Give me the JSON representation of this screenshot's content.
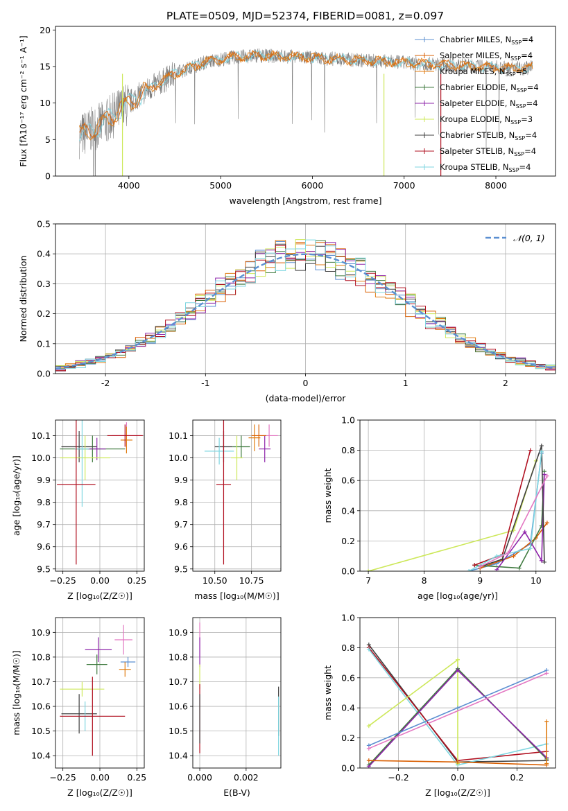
{
  "title": "PLATE=0509, MJD=52374, FIBERID=0081, z=0.097",
  "colors": [
    "#5b8fd1",
    "#d95f02",
    "#e07b10",
    "#3f7a3f",
    "#8e24aa",
    "#cde85a",
    "#404040",
    "#b01020",
    "#7fd6e0",
    "#e377c2"
  ],
  "chart_data": [
    {
      "id": "spectrum",
      "type": "line",
      "xlabel": "wavelength [Angstrom, rest frame]",
      "ylabel": "Flux [fλ10⁻¹⁷ erg cm⁻² s⁻¹ A⁻¹]",
      "xlim": [
        3200,
        8650
      ],
      "ylim": [
        0,
        20.5
      ],
      "xticks": [
        4000,
        5000,
        6000,
        7000,
        8000
      ],
      "yticks": [
        0,
        5,
        10,
        15,
        20
      ],
      "grid": false,
      "legend_position": "top-right",
      "continuum": {
        "x": [
          3460,
          3700,
          3900,
          4100,
          4300,
          4500,
          4800,
          5100,
          5400,
          5700,
          6000,
          6300,
          6600,
          6900,
          7200,
          7500,
          7800,
          8100,
          8400
        ],
        "y": [
          5.5,
          7.0,
          9.0,
          11.0,
          12.5,
          14.0,
          15.5,
          16.2,
          16.5,
          16.4,
          16.2,
          16.0,
          15.8,
          15.6,
          15.4,
          15.2,
          15.0,
          14.8,
          14.8
        ]
      },
      "series": [
        {
          "name": "Chabrier MILES, N",
          "sub": "SSP",
          "suffix": "=4"
        },
        {
          "name": "Salpeter MILES, N",
          "sub": "SSP",
          "suffix": "=4"
        },
        {
          "name": "Kroupa MILES, N",
          "sub": "SSP",
          "suffix": "=5"
        },
        {
          "name": "Chabrier ELODIE, N",
          "sub": "SSP",
          "suffix": "=4"
        },
        {
          "name": "Salpeter ELODIE, N",
          "sub": "SSP",
          "suffix": "=4"
        },
        {
          "name": "Kroupa ELODIE, N",
          "sub": "SSP",
          "suffix": "=3"
        },
        {
          "name": "Chabrier STELIB, N",
          "sub": "SSP",
          "suffix": "=4"
        },
        {
          "name": "Salpeter STELIB, N",
          "sub": "SSP",
          "suffix": "=4"
        },
        {
          "name": "Kroupa STELIB, N",
          "sub": "SSP",
          "suffix": "=4"
        }
      ]
    },
    {
      "id": "residuals",
      "type": "histogram",
      "xlabel": "(data-model)/error",
      "ylabel": "Normed distribution",
      "xlim": [
        -2.5,
        2.5
      ],
      "ylim": [
        0,
        0.5
      ],
      "xticks": [
        -2,
        -1,
        0,
        1,
        2
      ],
      "yticks": [
        0.0,
        0.1,
        0.2,
        0.3,
        0.4,
        0.5
      ],
      "grid": true,
      "legend": "𝒩(0, 1)",
      "legend_position": "top-right",
      "bin_width": 0.1
    },
    {
      "id": "age-vs-z",
      "type": "scatter",
      "xlabel": "Z [log₁₀(Z/Z☉)]",
      "ylabel": "age  [log₁₀(age/yr)]",
      "xlim": [
        -0.3,
        0.3
      ],
      "ylim": [
        9.49,
        10.17
      ],
      "xticks": [
        -0.25,
        0.0,
        0.25
      ],
      "xtick_labels": [
        "−0.25",
        "0.00",
        "0.25"
      ],
      "yticks": [
        9.5,
        9.6,
        9.7,
        9.8,
        9.9,
        10.0,
        10.1
      ],
      "grid": true,
      "points": [
        {
          "x": -0.05,
          "y": 10.04,
          "xerr": 0.22,
          "yerr": 0.06,
          "c": 3
        },
        {
          "x": -0.14,
          "y": 10.05,
          "xerr": 0.12,
          "yerr": 0.07,
          "c": 6
        },
        {
          "x": -0.02,
          "y": 10.04,
          "xerr": 0.06,
          "yerr": 0.05,
          "c": 4
        },
        {
          "x": -0.1,
          "y": 10.0,
          "xerr": 0.17,
          "yerr": 0.1,
          "c": 5
        },
        {
          "x": -0.12,
          "y": 10.04,
          "xerr": 0.05,
          "yerr": 0.26,
          "c": 8
        },
        {
          "x": -0.16,
          "y": 9.88,
          "xerr": 0.13,
          "yerr": 0.36,
          "c": 7
        },
        {
          "x": 0.18,
          "y": 10.1,
          "xerr": 0.1,
          "yerr": 0.06,
          "c": 9
        },
        {
          "x": 0.18,
          "y": 10.08,
          "xerr": 0.04,
          "yerr": 0.06,
          "c": 2
        },
        {
          "x": 0.17,
          "y": 10.1,
          "xerr": 0.12,
          "yerr": 0.05,
          "c": 7
        }
      ]
    },
    {
      "id": "age-vs-mass",
      "type": "scatter",
      "xlabel": "mass [log₁₀(M/M☉)]",
      "ylabel": "",
      "xlim": [
        10.35,
        10.95
      ],
      "ylim": [
        9.49,
        10.17
      ],
      "xticks": [
        10.5,
        10.75
      ],
      "xtick_labels": [
        "10.50",
        "10.75"
      ],
      "yticks": [
        9.5,
        9.6,
        9.7,
        9.8,
        9.9,
        10.0,
        10.1
      ],
      "grid": true,
      "points": [
        {
          "x": 10.56,
          "y": 10.05,
          "xerr": 0.06,
          "yerr": 0.07,
          "c": 6
        },
        {
          "x": 10.53,
          "y": 10.03,
          "xerr": 0.1,
          "yerr": 0.06,
          "c": 8
        },
        {
          "x": 10.68,
          "y": 10.05,
          "xerr": 0.06,
          "yerr": 0.05,
          "c": 3
        },
        {
          "x": 10.65,
          "y": 10.0,
          "xerr": 0.04,
          "yerr": 0.1,
          "c": 5
        },
        {
          "x": 10.84,
          "y": 10.04,
          "xerr": 0.04,
          "yerr": 0.06,
          "c": 4
        },
        {
          "x": 10.56,
          "y": 9.88,
          "xerr": 0.05,
          "yerr": 0.36,
          "c": 7
        },
        {
          "x": 10.87,
          "y": 10.1,
          "xerr": 0.06,
          "yerr": 0.05,
          "c": 9
        },
        {
          "x": 10.77,
          "y": 10.09,
          "xerr": 0.04,
          "yerr": 0.06,
          "c": 2
        },
        {
          "x": 10.8,
          "y": 10.1,
          "xerr": 0.05,
          "yerr": 0.05,
          "c": 1
        }
      ]
    },
    {
      "id": "weight-vs-age",
      "type": "line",
      "xlabel": "age  [log₁₀(age/yr)]",
      "ylabel": "mass weight",
      "xlim": [
        6.85,
        10.35
      ],
      "ylim": [
        0,
        1.0
      ],
      "xticks": [
        7,
        8,
        9,
        10
      ],
      "yticks": [
        0.0,
        0.2,
        0.4,
        0.6,
        0.8,
        1.0
      ],
      "grid": true,
      "series": [
        {
          "c": 0,
          "x": [
            8.8,
            9.3,
            9.9,
            10.1
          ],
          "y": [
            0.0,
            0.05,
            0.18,
            0.78
          ]
        },
        {
          "c": 1,
          "x": [
            9.0,
            9.6,
            10.0,
            10.2
          ],
          "y": [
            0.02,
            0.1,
            0.22,
            0.32
          ]
        },
        {
          "c": 3,
          "x": [
            8.9,
            9.7,
            10.1,
            10.15
          ],
          "y": [
            0.04,
            0.02,
            0.3,
            0.66
          ]
        },
        {
          "c": 4,
          "x": [
            9.3,
            9.8,
            10.1,
            10.15
          ],
          "y": [
            0.01,
            0.26,
            0.07,
            0.64
          ]
        },
        {
          "c": 5,
          "x": [
            7.0,
            9.6,
            10.0
          ],
          "y": [
            0.0,
            0.27,
            0.73
          ]
        },
        {
          "c": 6,
          "x": [
            9.0,
            9.4,
            10.1,
            10.15
          ],
          "y": [
            0.03,
            0.08,
            0.83,
            0.06
          ]
        },
        {
          "c": 7,
          "x": [
            8.9,
            9.4,
            9.9
          ],
          "y": [
            0.04,
            0.11,
            0.8
          ]
        },
        {
          "c": 8,
          "x": [
            8.8,
            9.3,
            9.9,
            10.1
          ],
          "y": [
            0.0,
            0.1,
            0.15,
            0.79
          ]
        },
        {
          "c": 9,
          "x": [
            9.0,
            9.5,
            10.2
          ],
          "y": [
            0.03,
            0.12,
            0.63
          ]
        }
      ]
    },
    {
      "id": "mass-vs-z",
      "type": "scatter",
      "xlabel": "Z [log₁₀(Z/Z☉)]",
      "ylabel": "mass [log₁₀(M/M☉)]",
      "xlim": [
        -0.3,
        0.3
      ],
      "ylim": [
        10.35,
        10.96
      ],
      "xticks": [
        -0.25,
        0.0,
        0.25
      ],
      "xtick_labels": [
        "−0.25",
        "0.00",
        "0.25"
      ],
      "yticks": [
        10.4,
        10.5,
        10.6,
        10.7,
        10.8,
        10.9
      ],
      "grid": true,
      "points": [
        {
          "x": -0.01,
          "y": 10.83,
          "xerr": 0.09,
          "yerr": 0.05,
          "c": 4
        },
        {
          "x": 0.16,
          "y": 10.87,
          "xerr": 0.06,
          "yerr": 0.06,
          "c": 9
        },
        {
          "x": 0.19,
          "y": 10.78,
          "xerr": 0.05,
          "yerr": 0.02,
          "c": 0
        },
        {
          "x": -0.02,
          "y": 10.77,
          "xerr": 0.07,
          "yerr": 0.04,
          "c": 3
        },
        {
          "x": 0.17,
          "y": 10.75,
          "xerr": 0.04,
          "yerr": 0.03,
          "c": 2
        },
        {
          "x": -0.12,
          "y": 10.67,
          "xerr": 0.15,
          "yerr": 0.03,
          "c": 5
        },
        {
          "x": -0.14,
          "y": 10.57,
          "xerr": 0.12,
          "yerr": 0.08,
          "c": 6
        },
        {
          "x": -0.1,
          "y": 10.56,
          "xerr": 0.05,
          "yerr": 0.06,
          "c": 8
        },
        {
          "x": -0.05,
          "y": 10.56,
          "xerr": 0.22,
          "yerr": 0.16,
          "c": 7
        }
      ]
    },
    {
      "id": "mass-vs-ebv",
      "type": "scatter",
      "xlabel": "E(B-V)",
      "ylabel": "",
      "xlim": [
        -0.0003,
        0.0035
      ],
      "ylim": [
        10.35,
        10.96
      ],
      "xticks": [
        0.0,
        0.002
      ],
      "xtick_labels": [
        "0.000",
        "0.002"
      ],
      "yticks": [
        10.4,
        10.5,
        10.6,
        10.7,
        10.8,
        10.9
      ],
      "grid": true,
      "points": [
        {
          "x": 0.0,
          "y": 10.87,
          "xerr": 0,
          "yerr": 0.07,
          "c": 9
        },
        {
          "x": 0.0,
          "y": 10.82,
          "xerr": 0,
          "yerr": 0.06,
          "c": 4
        },
        {
          "x": 0.0,
          "y": 10.72,
          "xerr": 0,
          "yerr": 0.05,
          "c": 5
        },
        {
          "x": 0.0,
          "y": 10.55,
          "xerr": 0,
          "yerr": 0.14,
          "c": 7
        },
        {
          "x": 0.0,
          "y": 10.55,
          "xerr": 0,
          "yerr": 0.1,
          "c": 6
        },
        {
          "x": 0.0034,
          "y": 10.58,
          "xerr": 0,
          "yerr": 0.1,
          "c": 6
        },
        {
          "x": 0.0034,
          "y": 10.52,
          "xerr": 0,
          "yerr": 0.12,
          "c": 8
        }
      ]
    },
    {
      "id": "weight-vs-z",
      "type": "line",
      "xlabel": "Z [log₁₀(Z/Z☉)]",
      "ylabel": "mass weight",
      "xlim": [
        -0.33,
        0.33
      ],
      "ylim": [
        0,
        1.0
      ],
      "xticks": [
        -0.2,
        0.0,
        0.2
      ],
      "xtick_labels": [
        "−0.2",
        "0.0",
        "0.2"
      ],
      "yticks": [
        0.0,
        0.2,
        0.4,
        0.6,
        0.8,
        1.0
      ],
      "grid": true,
      "series": [
        {
          "c": 6,
          "x": [
            -0.3,
            0.0,
            0.3
          ],
          "y": [
            0.82,
            0.04,
            0.05
          ]
        },
        {
          "c": 7,
          "x": [
            -0.3,
            0.0,
            0.3
          ],
          "y": [
            0.8,
            0.05,
            0.11
          ]
        },
        {
          "c": 8,
          "x": [
            -0.3,
            0.0,
            0.3
          ],
          "y": [
            0.79,
            0.02,
            0.16
          ]
        },
        {
          "c": 5,
          "x": [
            -0.3,
            0.0,
            0.0
          ],
          "y": [
            0.28,
            0.72,
            0.03
          ]
        },
        {
          "c": 3,
          "x": [
            -0.3,
            0.0,
            0.3
          ],
          "y": [
            0.02,
            0.66,
            0.06
          ]
        },
        {
          "c": 4,
          "x": [
            -0.3,
            0.0,
            0.3
          ],
          "y": [
            0.01,
            0.65,
            0.07
          ]
        },
        {
          "c": 0,
          "x": [
            -0.3,
            0.0,
            0.3
          ],
          "y": [
            0.15,
            0.4,
            0.65
          ]
        },
        {
          "c": 9,
          "x": [
            -0.3,
            0.3
          ],
          "y": [
            0.13,
            0.63
          ]
        },
        {
          "c": 1,
          "x": [
            -0.3,
            0.0,
            0.3
          ],
          "y": [
            0.05,
            0.04,
            0.02
          ]
        },
        {
          "c": 2,
          "x": [
            0.3,
            0.3
          ],
          "y": [
            0.31,
            0.03
          ]
        }
      ]
    }
  ]
}
